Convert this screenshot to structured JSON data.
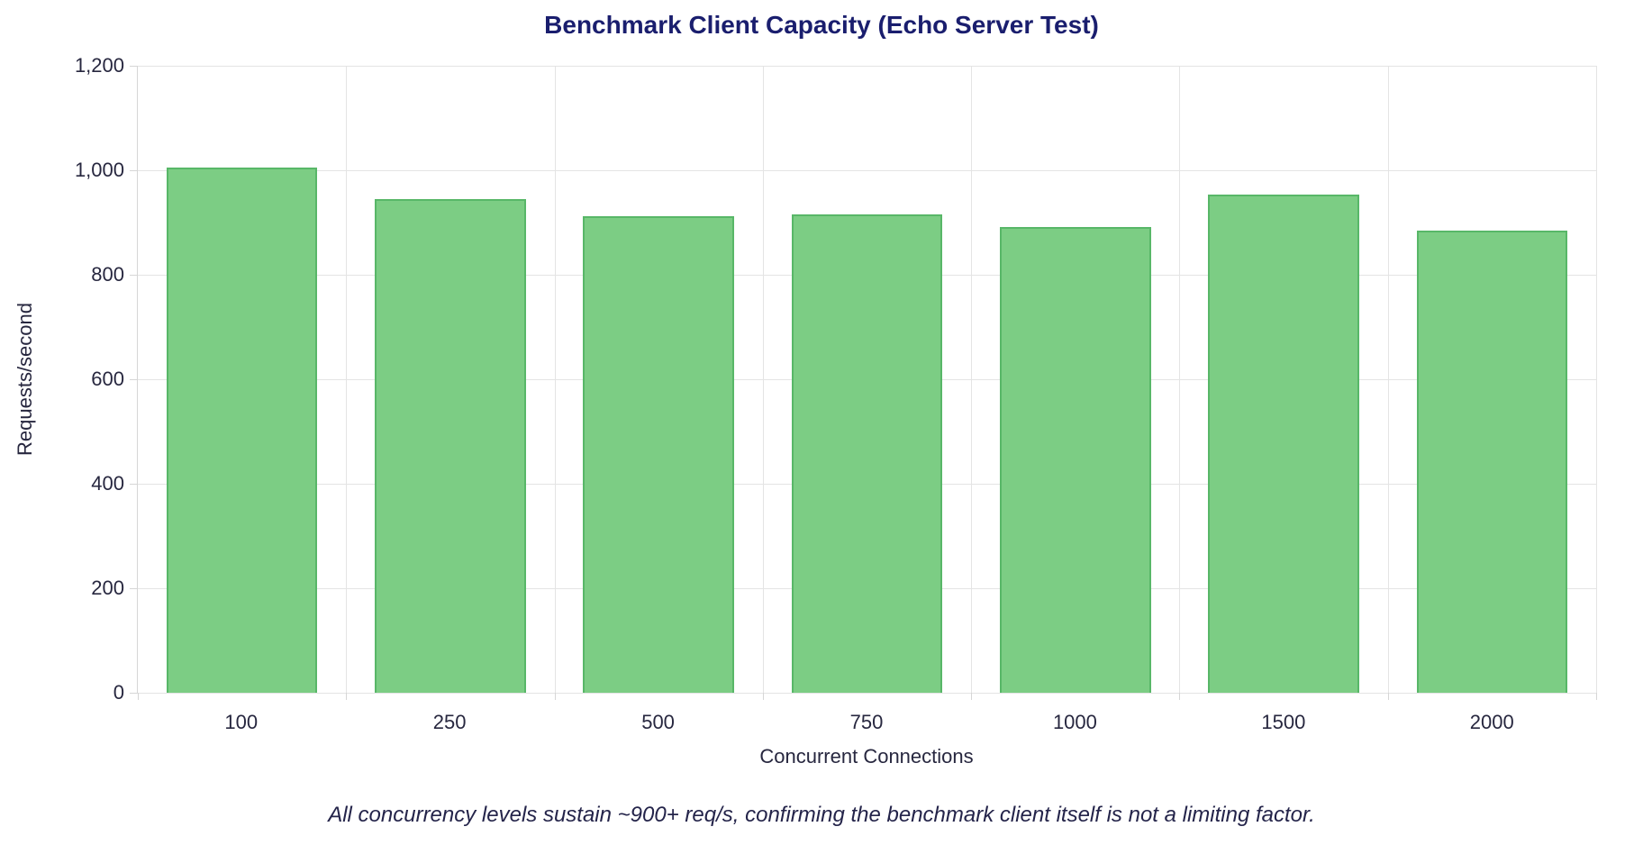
{
  "chart_data": {
    "type": "bar",
    "title": "Benchmark Client Capacity (Echo Server Test)",
    "xlabel": "Concurrent Connections",
    "ylabel": "Requests/second",
    "categories": [
      "100",
      "250",
      "500",
      "750",
      "1000",
      "1500",
      "2000"
    ],
    "values": [
      1005,
      945,
      912,
      915,
      892,
      953,
      884
    ],
    "ylim": [
      0,
      1200
    ],
    "ytick_step": 200,
    "ytick_labels": [
      "0",
      "200",
      "400",
      "600",
      "800",
      "1,000",
      "1,200"
    ],
    "grid": true,
    "legend": "none",
    "annotation": "All concurrency levels sustain ~900+ req/s, confirming the benchmark client itself is not a limiting factor.",
    "colors": {
      "bar_fill": "#7ccd84",
      "bar_border": "#58b768",
      "grid": "#e4e4e4",
      "axis_line": "#d6d6d6",
      "title_text": "#1a1e6e",
      "axis_text": "#27273f",
      "caption_text": "#24244a",
      "background": "#ffffff"
    }
  }
}
